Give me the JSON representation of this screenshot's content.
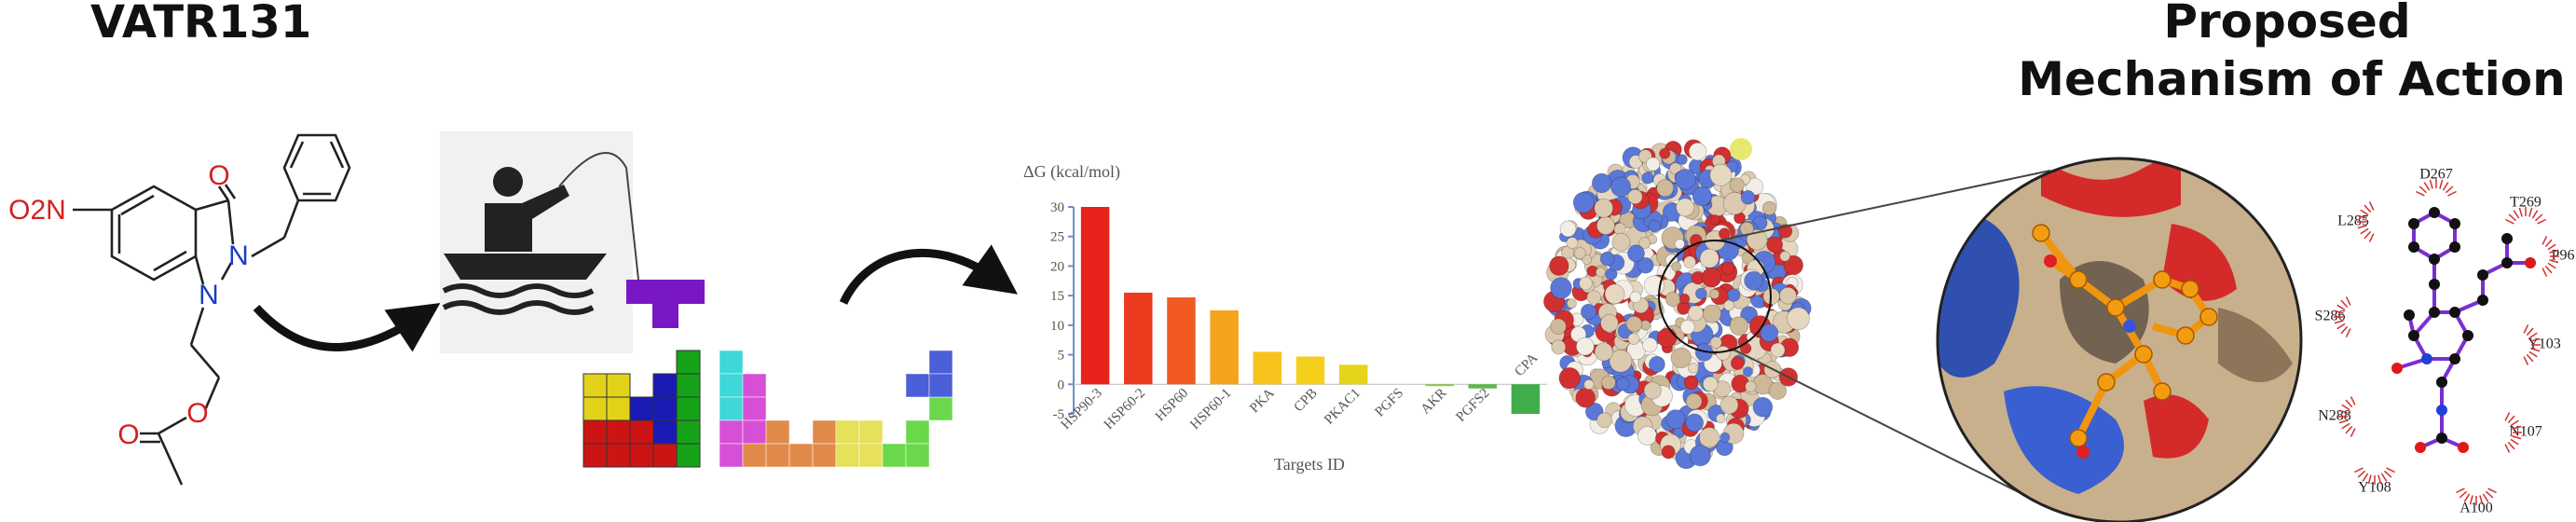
{
  "header": {
    "compound": "VATR131",
    "mechanism_title": [
      "Proposed",
      "Mechanism of Action"
    ]
  },
  "molecule": {
    "atoms": [
      "O2N",
      "O",
      "N",
      "N",
      "O",
      "O"
    ]
  },
  "chart": {
    "type": "bar",
    "y_label": "ΔG (kcal/mol)",
    "x_label": "Targets ID",
    "categories": [
      "HSP90-3",
      "HSP60-2",
      "HSP60",
      "HSP60-1",
      "PKA",
      "CPB",
      "PKAC1",
      "PGFS",
      "AKR",
      "PGFS2",
      "CPA"
    ],
    "values": [
      30,
      15.5,
      14.7,
      12.5,
      5.5,
      4.7,
      3.3,
      0,
      -0.3,
      -0.7,
      -5
    ],
    "colors": [
      "#e8231b",
      "#ec3a1e",
      "#f05a22",
      "#f5a31c",
      "#f8c21c",
      "#f4d01c",
      "#e6d41a",
      "#c9d62f",
      "#8fc640",
      "#5fb848",
      "#3fae4a"
    ],
    "ylim": [
      -5,
      30
    ],
    "yticks": [
      -5,
      0,
      5,
      10,
      15,
      20,
      25,
      30
    ]
  },
  "interaction_residues": [
    "D267",
    "T269",
    "L285",
    "P96",
    "S286",
    "Y103",
    "N288",
    "N107",
    "Y108",
    "A100"
  ]
}
